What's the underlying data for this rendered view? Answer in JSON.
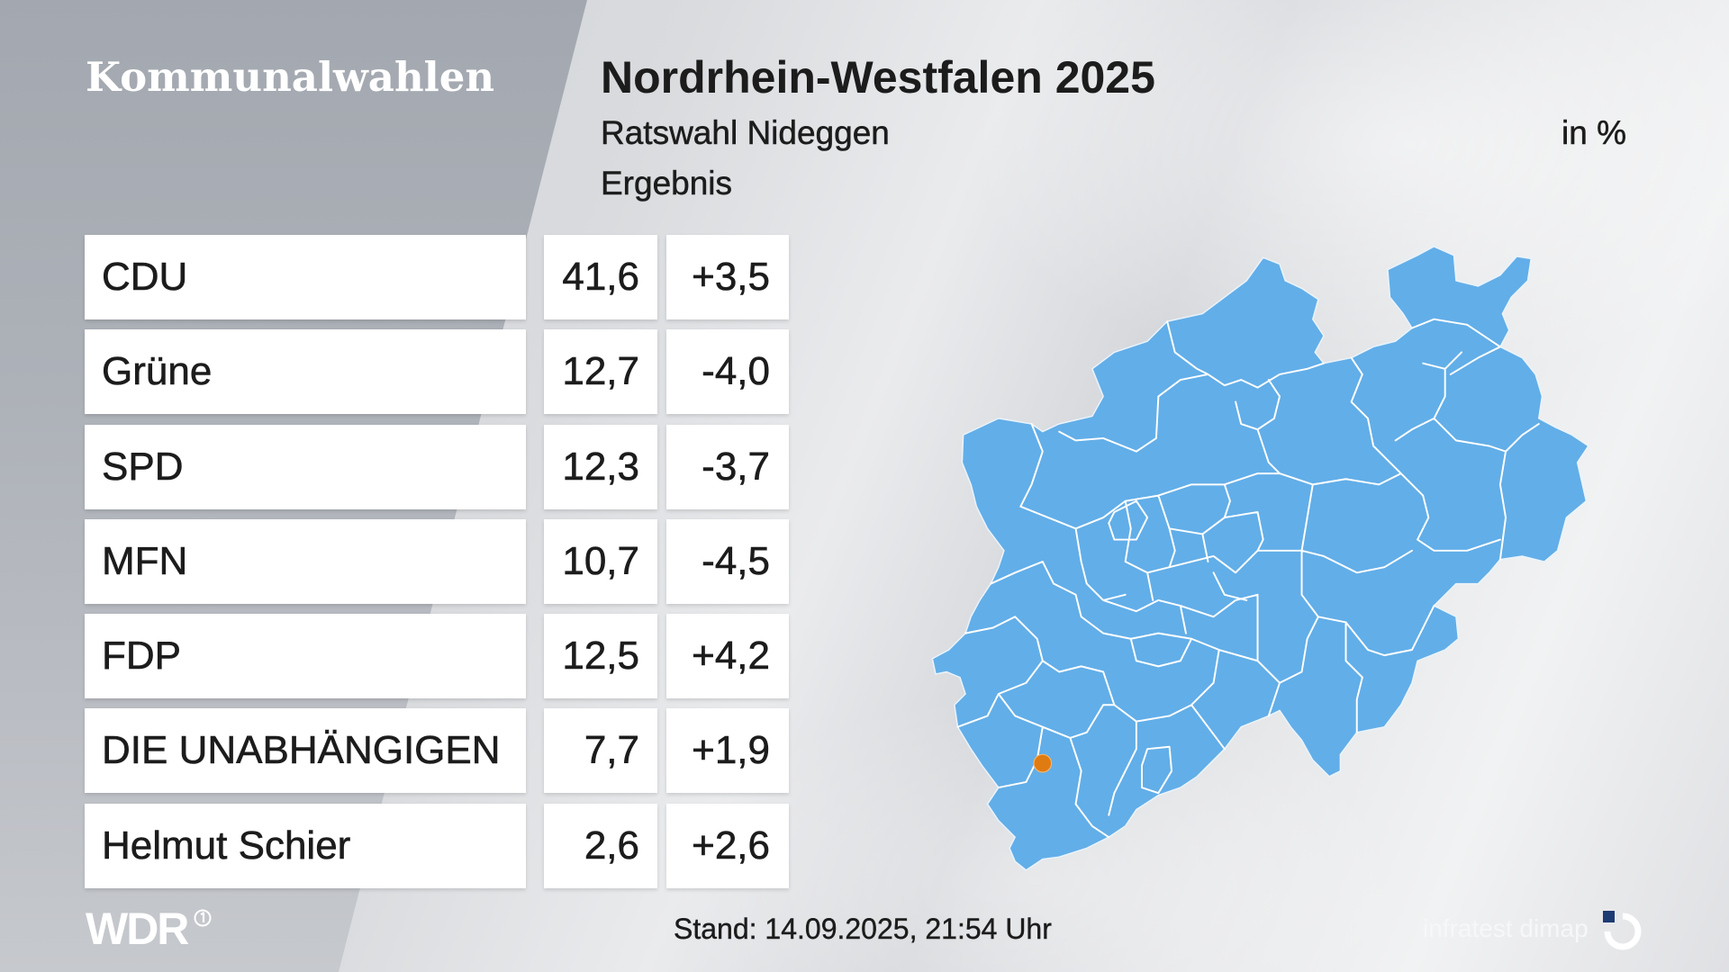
{
  "header": {
    "section_title": "Kommunalwahlen"
  },
  "chart_data": {
    "type": "table",
    "title": "Nordrhein-Westfalen 2025",
    "subtitle": "Ratswahl Nideggen",
    "caption": "Ergebnis",
    "unit": "in %",
    "rows": [
      {
        "label": "CDU",
        "value": 41.6,
        "change": 3.5
      },
      {
        "label": "Grüne",
        "value": 12.7,
        "change": -4.0
      },
      {
        "label": "SPD",
        "value": 12.3,
        "change": -3.7
      },
      {
        "label": "MFN",
        "value": 10.7,
        "change": -4.5
      },
      {
        "label": "FDP",
        "value": 12.5,
        "change": 4.2
      },
      {
        "label": "DIE UNABHÄNGIGEN",
        "value": 7.7,
        "change": 1.9
      },
      {
        "label": "Helmut Schier",
        "value": 2.6,
        "change": 2.6
      }
    ]
  },
  "map": {
    "fill_color": "#62aee8",
    "border_color": "#ffffff",
    "highlight_color": "#e07b12"
  },
  "footer": {
    "broadcaster_logo": "WDR",
    "timestamp": "Stand: 14.09.2025, 21:54 Uhr",
    "pollster": "infratest dimap",
    "icons": [
      "ard-icon",
      "infratest-dimap-logo-icon"
    ]
  },
  "colors": {
    "text": "#1c1c1c",
    "panel": "#a8adb5",
    "cell_background": "#ffffff",
    "pollster_accent": "#1d3b73"
  }
}
